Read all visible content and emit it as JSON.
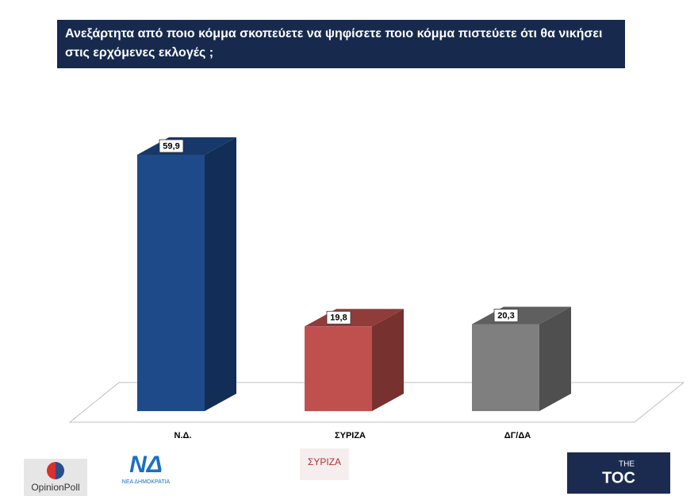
{
  "chart_data": {
    "type": "bar3d",
    "title": "Ανεξάρτητα από ποιο κόμμα σκοπεύετε να ψηφίσετε ποιο κόμμα πιστεύετε ότι θα νικήσει στις ερχόμενες εκλογές ;",
    "categories": [
      "Ν.Δ.",
      "ΣΥΡΙΖΑ",
      "ΔΓ/ΔΑ"
    ],
    "values": [
      59.9,
      19.8,
      20.3
    ],
    "value_labels": [
      "59,9",
      "19,8",
      "20,3"
    ],
    "colors": [
      "#1f4a8a",
      "#c0504d",
      "#7f7f7f"
    ]
  },
  "logos": {
    "opinion_poll": "OpinionPoll",
    "nd": "ΝΔ",
    "nd_sub": "ΝΕΑ ΔΗΜΟΚΡΑΤΙΑ",
    "syriza": "ΣΥΡΙΖΑ",
    "toc_the": "THE",
    "toc": "TOC"
  }
}
